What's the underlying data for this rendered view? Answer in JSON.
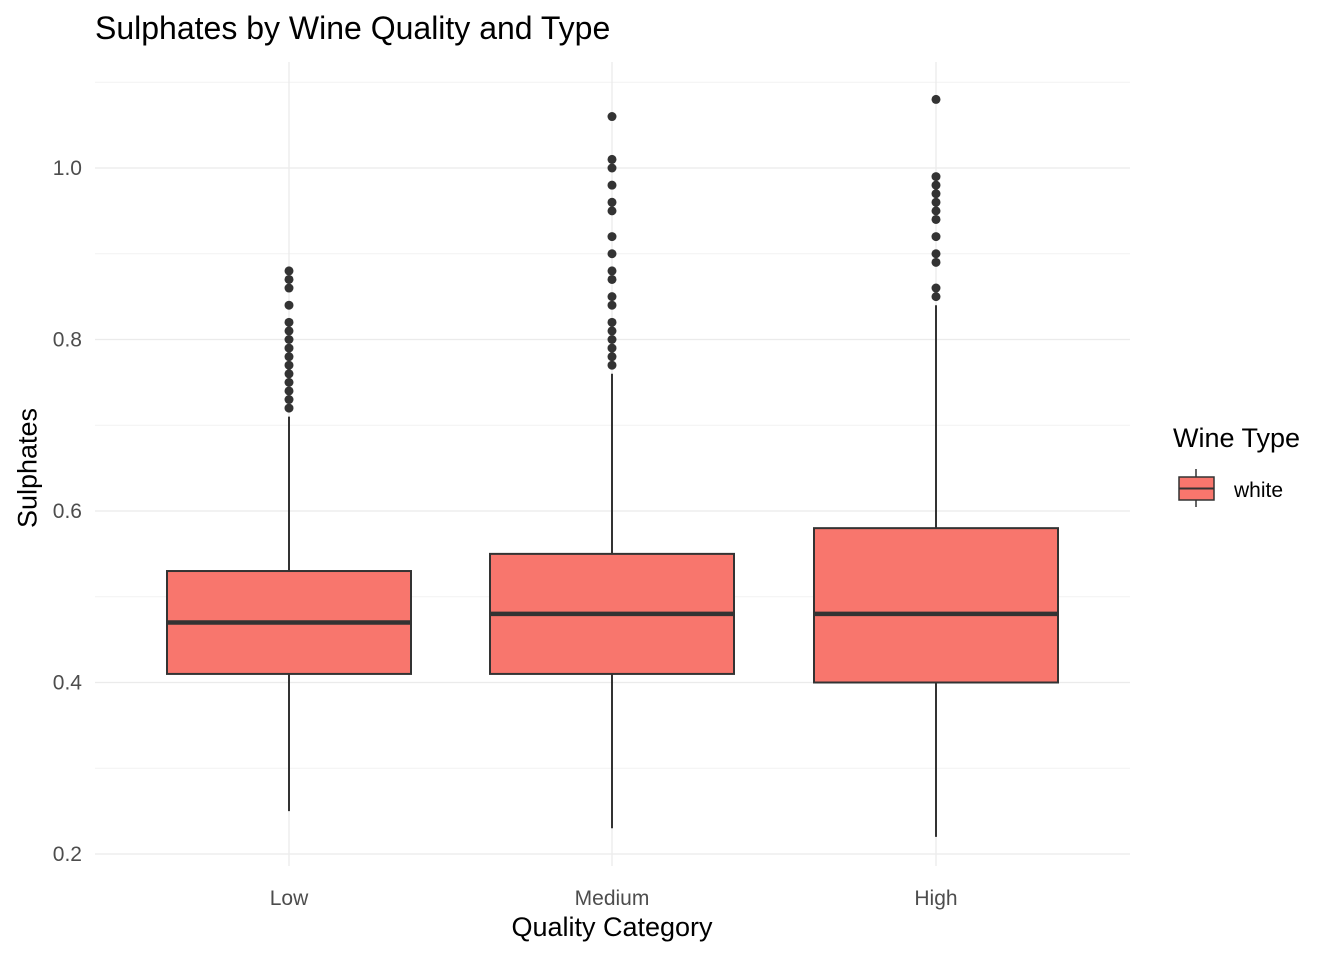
{
  "chart_data": {
    "type": "boxplot",
    "title": "Sulphates by Wine Quality and Type",
    "xlabel": "Quality Category",
    "ylabel": "Sulphates",
    "categories": [
      "Low",
      "Medium",
      "High"
    ],
    "ylim": [
      0.19,
      1.11
    ],
    "yticks": [
      0.2,
      0.4,
      0.6,
      0.8,
      1.0
    ],
    "ytick_labels": [
      "0.2",
      "0.4",
      "0.6",
      "0.8",
      "1.0"
    ],
    "grid": true,
    "legend": {
      "title": "Wine Type",
      "entries": [
        "white"
      ],
      "position": "right"
    },
    "fill_color": "#F8766D",
    "line_color": "#333333",
    "series": [
      {
        "name": "white",
        "boxes": [
          {
            "category": "Low",
            "whisker_low": 0.25,
            "q1": 0.41,
            "median": 0.47,
            "q3": 0.53,
            "whisker_high": 0.71,
            "outliers": [
              0.72,
              0.73,
              0.74,
              0.75,
              0.76,
              0.77,
              0.78,
              0.79,
              0.8,
              0.81,
              0.82,
              0.84,
              0.86,
              0.87,
              0.88
            ]
          },
          {
            "category": "Medium",
            "whisker_low": 0.23,
            "q1": 0.41,
            "median": 0.48,
            "q3": 0.55,
            "whisker_high": 0.76,
            "outliers": [
              0.77,
              0.78,
              0.79,
              0.8,
              0.81,
              0.82,
              0.84,
              0.85,
              0.87,
              0.88,
              0.9,
              0.92,
              0.95,
              0.96,
              0.98,
              1.0,
              1.01,
              1.06
            ]
          },
          {
            "category": "High",
            "whisker_low": 0.22,
            "q1": 0.4,
            "median": 0.48,
            "q3": 0.58,
            "whisker_high": 0.84,
            "outliers": [
              0.85,
              0.86,
              0.89,
              0.9,
              0.92,
              0.94,
              0.95,
              0.96,
              0.97,
              0.98,
              0.99,
              1.08
            ]
          }
        ]
      }
    ]
  }
}
